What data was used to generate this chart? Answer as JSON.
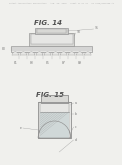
{
  "bg_color": "#f0f0ed",
  "header_text": "Patent Application Publication   Aug. 30, 2018   Sheet 11 of 13   US 2018/0246058 A1",
  "header_fontsize": 1.5,
  "fig14_title": "FIG. 14",
  "fig15_title": "FIG. 15",
  "title_fontsize": 5.0,
  "line_color": "#909090",
  "line_width": 0.45,
  "fill_light": "#e6e6e4",
  "fill_mid": "#d8d8d5",
  "fill_dark": "#ccccca"
}
